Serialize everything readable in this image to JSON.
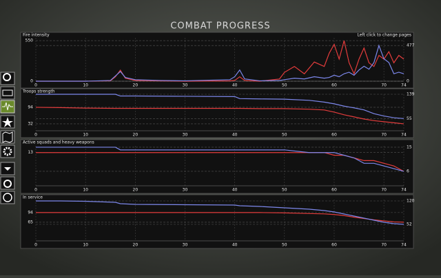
{
  "header": {
    "title": "COMBAT PROGRESS"
  },
  "chart_data": [
    {
      "type": "line",
      "title": "Fire intensity",
      "annotation": "Left click to change pages",
      "x": [
        0,
        10,
        15,
        16,
        17,
        18,
        20,
        25,
        30,
        39,
        40,
        41,
        42,
        45,
        49,
        50,
        52,
        54,
        56,
        58,
        59,
        60,
        61,
        62,
        63,
        64,
        65,
        66,
        67,
        68,
        69,
        70,
        71,
        72,
        73,
        74
      ],
      "xlim": [
        0,
        74
      ],
      "xticks": [
        0,
        10,
        20,
        30,
        40,
        50,
        60,
        70,
        74
      ],
      "ylim": [
        0,
        588
      ],
      "yticks": [
        0,
        550
      ],
      "y2lim": [
        0,
        580
      ],
      "y2ticks": [
        0,
        477
      ],
      "grid": true,
      "series": [
        {
          "color": "#e43c3c",
          "values": [
            0,
            0,
            5,
            60,
            150,
            40,
            10,
            5,
            0,
            5,
            10,
            60,
            10,
            0,
            30,
            120,
            200,
            100,
            260,
            200,
            380,
            500,
            300,
            550,
            250,
            100,
            300,
            450,
            250,
            200,
            350,
            300,
            400,
            250,
            350,
            300
          ]
        },
        {
          "color": "#7d88ec",
          "axis": "y2",
          "values": [
            0,
            0,
            10,
            70,
            130,
            50,
            20,
            10,
            5,
            20,
            60,
            150,
            30,
            5,
            10,
            20,
            40,
            30,
            60,
            40,
            50,
            80,
            60,
            100,
            120,
            80,
            150,
            200,
            160,
            250,
            477,
            300,
            250,
            100,
            120,
            100
          ]
        }
      ]
    },
    {
      "type": "line",
      "title": "Troops strength",
      "x": [
        0,
        5,
        10,
        16,
        17,
        20,
        30,
        40,
        41,
        45,
        50,
        55,
        58,
        60,
        62,
        64,
        66,
        68,
        70,
        72,
        74
      ],
      "xlim": [
        0,
        74
      ],
      "xticks": [
        0,
        10,
        20,
        30,
        40,
        50,
        60,
        70,
        74
      ],
      "ylim": [
        6,
        143
      ],
      "yticks": [
        32,
        94
      ],
      "y2lim": [
        13,
        139
      ],
      "y2ticks": [
        55,
        139
      ],
      "grid": true,
      "series": [
        {
          "color": "#e43c3c",
          "values": [
            94,
            93,
            91,
            90,
            90,
            90,
            90,
            90,
            90,
            89,
            89,
            87,
            84,
            76,
            66,
            58,
            50,
            44,
            40,
            36,
            32
          ]
        },
        {
          "color": "#7d88ec",
          "axis": "y2",
          "values": [
            139,
            139,
            139,
            139,
            133,
            133,
            132,
            131,
            124,
            123,
            122,
            118,
            112,
            106,
            98,
            92,
            85,
            72,
            64,
            58,
            55
          ]
        }
      ]
    },
    {
      "type": "line",
      "title": "Active squads and heavy weapons",
      "x": [
        0,
        5,
        10,
        16,
        17,
        20,
        30,
        40,
        41,
        45,
        50,
        55,
        58,
        60,
        62,
        64,
        66,
        68,
        70,
        72,
        74
      ],
      "xlim": [
        0,
        74
      ],
      "xticks": [
        0,
        10,
        20,
        30,
        40,
        50,
        60,
        70,
        74
      ],
      "ylim": [
        0.6,
        15.5
      ],
      "yticks": [
        13
      ],
      "y2lim": [
        0.6,
        15.5
      ],
      "y2ticks": [
        6,
        15
      ],
      "grid": true,
      "series": [
        {
          "color": "#e43c3c",
          "values": [
            13,
            13,
            13,
            13,
            13,
            13,
            13,
            13,
            13,
            13,
            13,
            13,
            13,
            12,
            12,
            11,
            10,
            10,
            9,
            8,
            6
          ]
        },
        {
          "color": "#7d88ec",
          "axis": "y2",
          "values": [
            15,
            15,
            15,
            15,
            14,
            14,
            14,
            14,
            14,
            14,
            14,
            13,
            13,
            13,
            12,
            11,
            9,
            9,
            8,
            7,
            6
          ]
        }
      ]
    },
    {
      "type": "line",
      "title": "In service",
      "x": [
        0,
        5,
        10,
        16,
        17,
        20,
        30,
        40,
        41,
        45,
        50,
        55,
        58,
        60,
        62,
        64,
        66,
        68,
        70,
        72,
        74
      ],
      "xlim": [
        0,
        74
      ],
      "xticks": [
        0,
        10,
        20,
        30,
        40,
        50,
        60,
        70,
        74
      ],
      "ylim": [
        9,
        133
      ],
      "yticks": [
        65,
        94
      ],
      "y2lim": [
        4,
        124
      ],
      "y2ticks": [
        52,
        120
      ],
      "grid": true,
      "series": [
        {
          "color": "#e43c3c",
          "values": [
            94,
            94,
            94,
            94,
            94,
            94,
            94,
            94,
            94,
            94,
            93,
            91,
            90,
            88,
            85,
            80,
            76,
            72,
            69,
            66,
            65
          ]
        },
        {
          "color": "#7d88ec",
          "axis": "y2",
          "values": [
            120,
            120,
            119,
            116,
            112,
            110,
            109,
            108,
            106,
            104,
            100,
            96,
            92,
            88,
            82,
            76,
            70,
            64,
            58,
            54,
            52
          ]
        }
      ]
    }
  ]
}
